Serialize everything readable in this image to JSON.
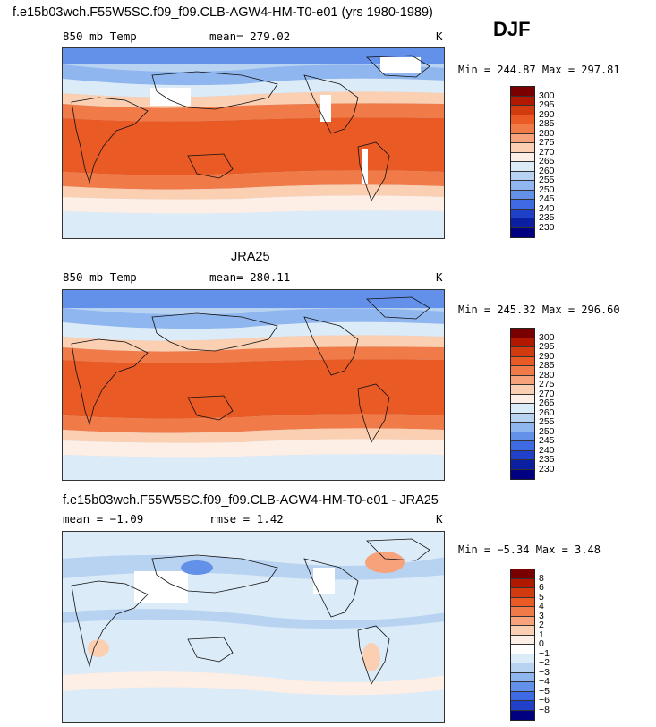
{
  "season": "DJF",
  "panels": [
    {
      "title": "f.e15b03wch.F55W5SC.f09_f09.CLB-AGW4-HM-T0-e01 (yrs 1980-1989)",
      "left_label": "850 mb Temp",
      "center_label": "mean= 279.02",
      "right_label": "K",
      "stats": "Min = 244.87 Max = 297.81",
      "colorbar_labels": [
        "300",
        "295",
        "290",
        "285",
        "280",
        "275",
        "270",
        "265",
        "260",
        "255",
        "250",
        "245",
        "240",
        "235",
        "230"
      ]
    },
    {
      "title": "JRA25",
      "left_label": "850 mb Temp",
      "center_label": "mean= 280.11",
      "right_label": "K",
      "stats": "Min = 245.32 Max = 296.60",
      "colorbar_labels": [
        "300",
        "295",
        "290",
        "285",
        "280",
        "275",
        "270",
        "265",
        "260",
        "255",
        "250",
        "245",
        "240",
        "235",
        "230"
      ]
    },
    {
      "title": "f.e15b03wch.F55W5SC.f09_f09.CLB-AGW4-HM-T0-e01 - JRA25",
      "left_label": "mean =  −1.09",
      "center_label": "rmse =   1.42",
      "right_label": "K",
      "stats": "Min =  −5.34 Max =   3.48",
      "colorbar_labels": [
        "8",
        "6",
        "5",
        "4",
        "3",
        "2",
        "1",
        "0",
        "−1",
        "−2",
        "−3",
        "−4",
        "−5",
        "−6",
        "−8"
      ]
    }
  ],
  "colors": {
    "temp_scale": [
      "#7a0000",
      "#b01800",
      "#d23a10",
      "#e95a25",
      "#f07a48",
      "#f7a27a",
      "#fbcfb2",
      "#fdeee6",
      "#dcebf8",
      "#b8d3f2",
      "#8fb6ee",
      "#6391ea",
      "#3e6ae3",
      "#2040c8",
      "#0a20a0",
      "#000080"
    ],
    "diff_scale": [
      "#7a0000",
      "#b01800",
      "#d23a10",
      "#e95a25",
      "#f07a48",
      "#f7a27a",
      "#fbcfb2",
      "#fdeee6",
      "#ffffff",
      "#dcebf8",
      "#b8d3f2",
      "#8fb6ee",
      "#6391ea",
      "#3e6ae3",
      "#2040c8",
      "#000080"
    ],
    "missing": "#ffffff",
    "coastline": "#111111"
  },
  "chart_data": [
    {
      "type": "heatmap",
      "title": "f.e15b03wch.F55W5SC.f09_f09.CLB-AGW4-HM-T0-e01 (yrs 1980-1989)",
      "field": "850 mb Temp",
      "units": "K",
      "mean": 279.02,
      "min": 244.87,
      "max": 297.81,
      "levels": [
        230,
        235,
        240,
        245,
        250,
        255,
        260,
        265,
        270,
        275,
        280,
        285,
        290,
        295,
        300
      ]
    },
    {
      "type": "heatmap",
      "title": "JRA25",
      "field": "850 mb Temp",
      "units": "K",
      "mean": 280.11,
      "min": 245.32,
      "max": 296.6,
      "levels": [
        230,
        235,
        240,
        245,
        250,
        255,
        260,
        265,
        270,
        275,
        280,
        285,
        290,
        295,
        300
      ]
    },
    {
      "type": "heatmap",
      "title": "f.e15b03wch.F55W5SC.f09_f09.CLB-AGW4-HM-T0-e01 - JRA25",
      "units": "K",
      "mean": -1.09,
      "rmse": 1.42,
      "min": -5.34,
      "max": 3.48,
      "levels": [
        -8,
        -6,
        -5,
        -4,
        -3,
        -2,
        -1,
        0,
        1,
        2,
        3,
        4,
        5,
        6,
        8
      ]
    }
  ]
}
